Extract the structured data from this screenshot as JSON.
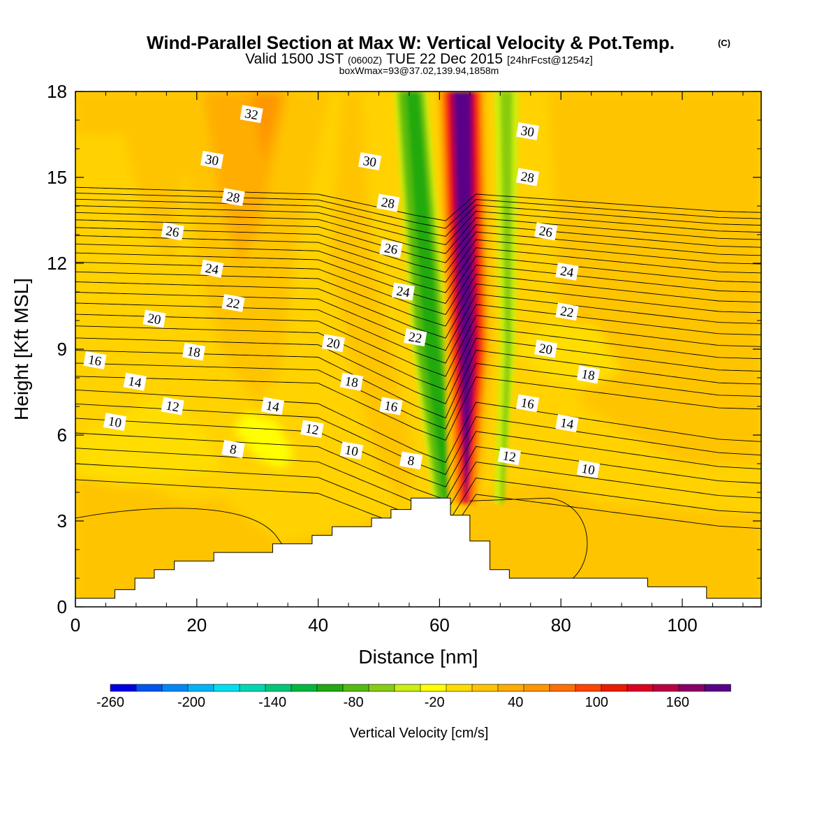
{
  "title": {
    "main": "Wind-Parallel Section at Max W: Vertical Velocity & Pot.Temp.",
    "copyright": "(C)",
    "valid_prefix": "Valid 1500 JST",
    "valid_utc": "(0600Z)",
    "valid_date": "TUE 22 Dec 2015",
    "forecast": "[24hrFcst@1254z]",
    "box": "boxWmax=93@37.02,139.94,1858m"
  },
  "chart_data": {
    "type": "heatmap",
    "xlabel": "Distance [nm]",
    "ylabel": "Height [Kft MSL]",
    "xlim": [
      0,
      113
    ],
    "ylim": [
      0,
      18
    ],
    "x_ticks": [
      0,
      20,
      40,
      60,
      80,
      100
    ],
    "y_ticks": [
      0,
      3,
      6,
      9,
      12,
      15,
      18
    ],
    "x_ticks_label": [
      "0",
      "20",
      "40",
      "60",
      "80",
      "100"
    ],
    "y_ticks_label": [
      "0",
      "3",
      "6",
      "9",
      "12",
      "15",
      "18"
    ],
    "colorbar": {
      "label": "Vertical Velocity [cm/s]",
      "tick_values": [
        -260,
        -200,
        -140,
        -80,
        -20,
        40,
        100,
        160
      ],
      "tick_labels": [
        "-260",
        "-200",
        "-140",
        "-80",
        "-20",
        "40",
        "100",
        "160"
      ],
      "levels": [
        -260,
        -240,
        -220,
        -200,
        -180,
        -160,
        -140,
        -120,
        -100,
        -80,
        -60,
        -40,
        -20,
        0,
        20,
        40,
        60,
        80,
        100,
        120,
        140,
        160,
        180
      ],
      "colors": [
        "#0000e6",
        "#0055ee",
        "#0088f5",
        "#00b4f8",
        "#00e0f0",
        "#00d8b4",
        "#00c87a",
        "#00b83a",
        "#22aa11",
        "#55bb11",
        "#88cc11",
        "#ccee11",
        "#ffff00",
        "#ffdd00",
        "#ffc400",
        "#ffad00",
        "#ff9600",
        "#ff7000",
        "#ff4400",
        "#ee1a00",
        "#dd0022",
        "#bb0044",
        "#8a0066",
        "#5a0088"
      ]
    },
    "terrain_profile": [
      [
        0,
        0.3
      ],
      [
        6.5,
        0.3
      ],
      [
        6.5,
        0.6
      ],
      [
        9.8,
        0.6
      ],
      [
        9.8,
        1.0
      ],
      [
        13,
        1.0
      ],
      [
        13,
        1.3
      ],
      [
        16.3,
        1.3
      ],
      [
        16.3,
        1.6
      ],
      [
        22.8,
        1.6
      ],
      [
        22.8,
        1.9
      ],
      [
        32.5,
        1.9
      ],
      [
        32.5,
        2.2
      ],
      [
        39,
        2.2
      ],
      [
        39,
        2.5
      ],
      [
        42.3,
        2.5
      ],
      [
        42.3,
        2.8
      ],
      [
        48.8,
        2.8
      ],
      [
        48.8,
        3.1
      ],
      [
        52,
        3.1
      ],
      [
        52,
        3.4
      ],
      [
        55.3,
        3.4
      ],
      [
        55.3,
        3.8
      ],
      [
        61.8,
        3.8
      ],
      [
        61.8,
        3.2
      ],
      [
        65,
        3.2
      ],
      [
        65,
        2.3
      ],
      [
        68.3,
        2.3
      ],
      [
        68.3,
        1.3
      ],
      [
        71.5,
        1.3
      ],
      [
        71.5,
        1.0
      ],
      [
        94.3,
        1.0
      ],
      [
        94.3,
        0.7
      ],
      [
        104,
        0.7
      ],
      [
        104,
        0.3
      ],
      [
        113,
        0.3
      ]
    ],
    "theta_contours": {
      "interval": 1,
      "labels": [
        {
          "text": "32",
          "x": 29,
          "y": 17.2
        },
        {
          "text": "30",
          "x": 22.5,
          "y": 15.6
        },
        {
          "text": "30",
          "x": 48.5,
          "y": 15.55
        },
        {
          "text": "30",
          "x": 74.5,
          "y": 16.6
        },
        {
          "text": "28",
          "x": 26,
          "y": 14.3
        },
        {
          "text": "28",
          "x": 51.5,
          "y": 14.1
        },
        {
          "text": "28",
          "x": 74.5,
          "y": 15.0
        },
        {
          "text": "26",
          "x": 16,
          "y": 13.1
        },
        {
          "text": "26",
          "x": 52,
          "y": 12.5
        },
        {
          "text": "26",
          "x": 77.5,
          "y": 13.1
        },
        {
          "text": "24",
          "x": 22.5,
          "y": 11.8
        },
        {
          "text": "24",
          "x": 54,
          "y": 11.0
        },
        {
          "text": "24",
          "x": 81,
          "y": 11.7
        },
        {
          "text": "22",
          "x": 26,
          "y": 10.6
        },
        {
          "text": "22",
          "x": 56,
          "y": 9.4
        },
        {
          "text": "22",
          "x": 81,
          "y": 10.3
        },
        {
          "text": "20",
          "x": 13,
          "y": 10.05
        },
        {
          "text": "20",
          "x": 42.5,
          "y": 9.2
        },
        {
          "text": "20",
          "x": 77.5,
          "y": 9.0
        },
        {
          "text": "18",
          "x": 19.5,
          "y": 8.9
        },
        {
          "text": "18",
          "x": 45.5,
          "y": 7.85
        },
        {
          "text": "18",
          "x": 84.5,
          "y": 8.1
        },
        {
          "text": "16",
          "x": 3.2,
          "y": 8.6
        },
        {
          "text": "16",
          "x": 52,
          "y": 7.0
        },
        {
          "text": "16",
          "x": 74.5,
          "y": 7.1
        },
        {
          "text": "14",
          "x": 9.8,
          "y": 7.85
        },
        {
          "text": "14",
          "x": 32.5,
          "y": 7.0
        },
        {
          "text": "14",
          "x": 81,
          "y": 6.4
        },
        {
          "text": "12",
          "x": 16,
          "y": 7.0
        },
        {
          "text": "12",
          "x": 39,
          "y": 6.2
        },
        {
          "text": "12",
          "x": 71.5,
          "y": 5.25
        },
        {
          "text": "10",
          "x": 6.5,
          "y": 6.45
        },
        {
          "text": "10",
          "x": 45.5,
          "y": 5.45
        },
        {
          "text": "10",
          "x": 84.5,
          "y": 4.8
        },
        {
          "text": "8",
          "x": 26,
          "y": 5.5
        },
        {
          "text": "8",
          "x": 55.3,
          "y": 5.1
        }
      ]
    }
  }
}
